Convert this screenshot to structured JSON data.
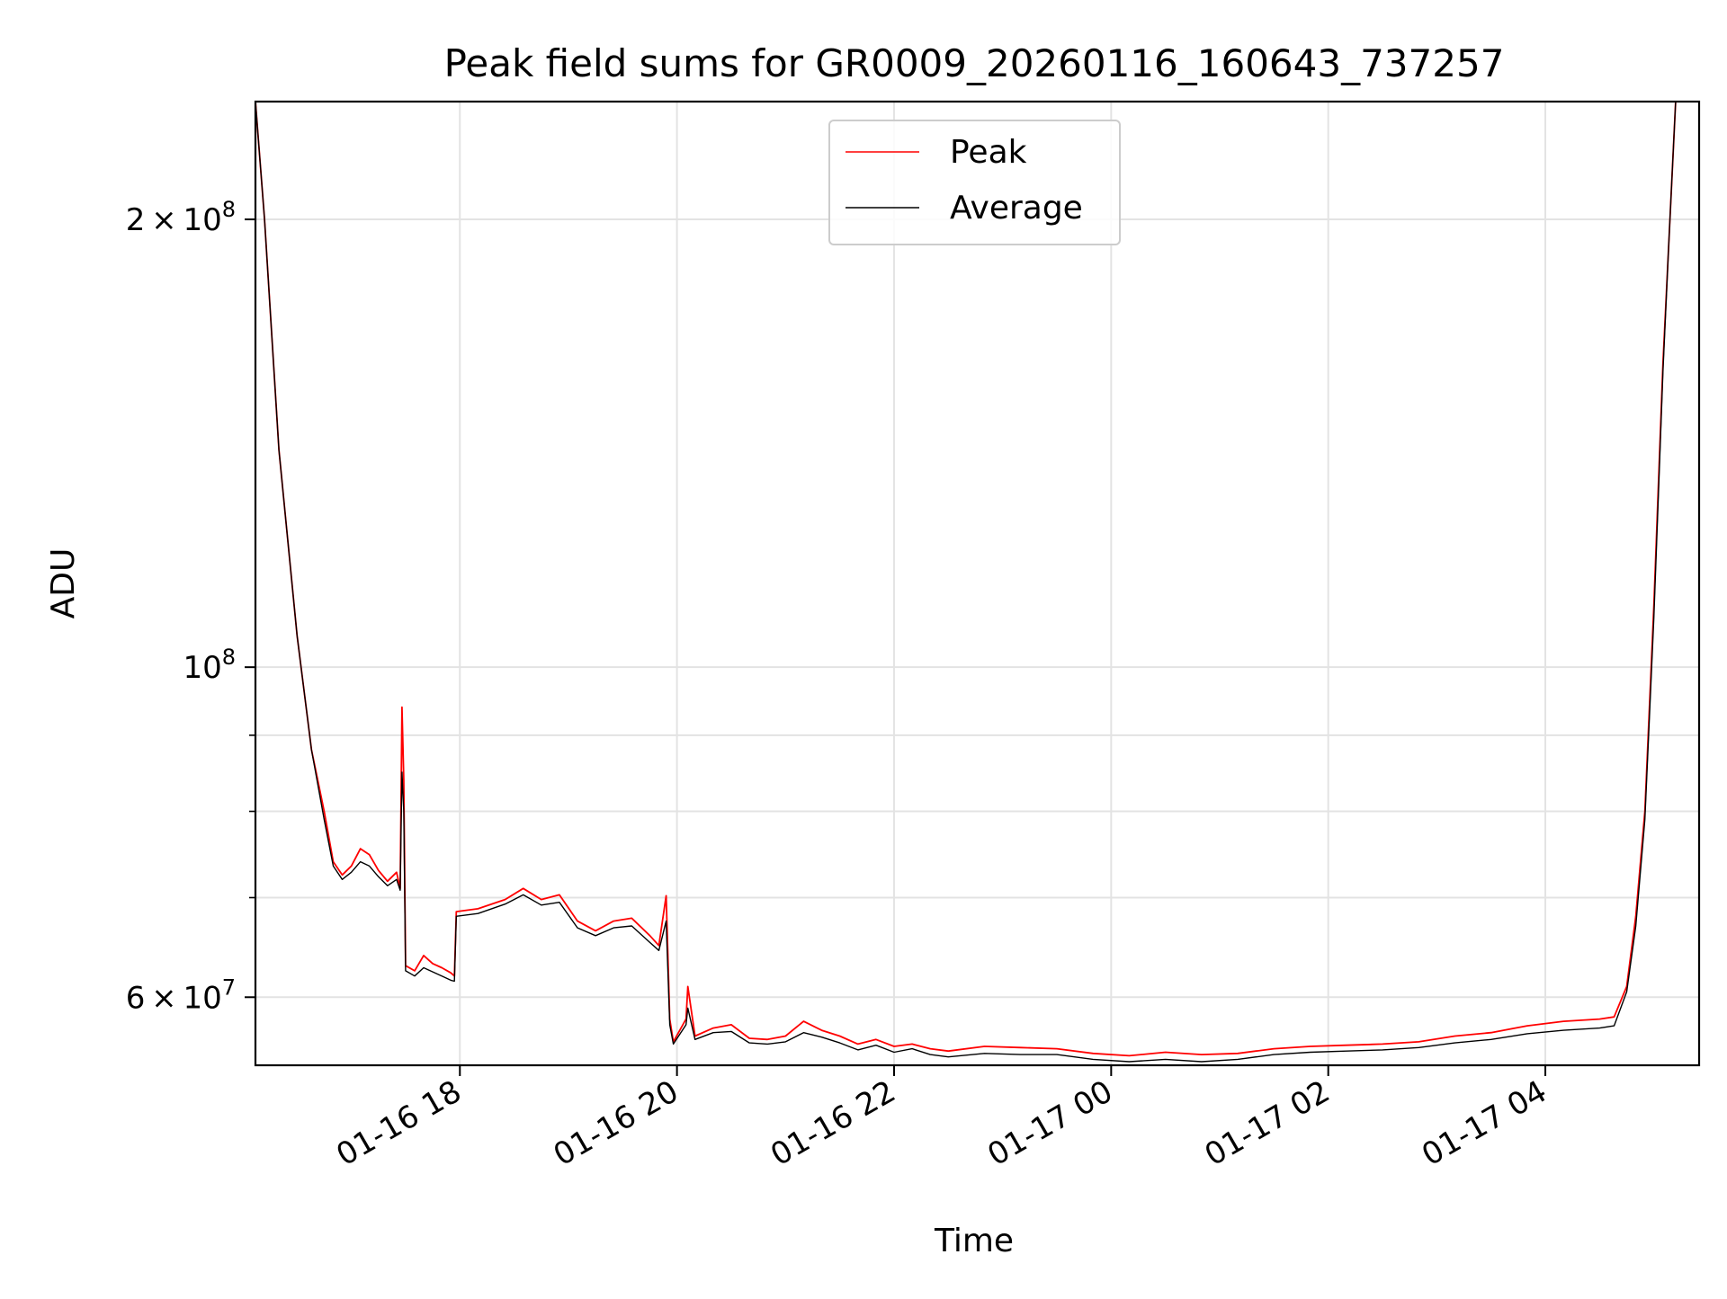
{
  "chart_data": {
    "type": "line",
    "title": "Peak field sums for GR0009_20260116_160643_737257",
    "xlabel": "Time",
    "ylabel": "ADU",
    "yscale": "log",
    "grid": true,
    "legend_position": "top-center",
    "xlim": [
      "2026-01-16 16:07",
      "2026-01-17 05:25"
    ],
    "ylim": [
      54000000,
      240000000
    ],
    "x_ticks": [
      {
        "value": "2026-01-16 18:00",
        "label": "01-16 18"
      },
      {
        "value": "2026-01-16 20:00",
        "label": "01-16 20"
      },
      {
        "value": "2026-01-16 22:00",
        "label": "01-16 22"
      },
      {
        "value": "2026-01-17 00:00",
        "label": "01-17 00"
      },
      {
        "value": "2026-01-17 02:00",
        "label": "01-17 02"
      },
      {
        "value": "2026-01-17 04:00",
        "label": "01-17 04"
      }
    ],
    "y_ticks_major": [
      {
        "value": 100000000,
        "base": "10",
        "exp": "8",
        "mantissa": ""
      },
      {
        "value": 200000000,
        "base": "10",
        "exp": "8",
        "mantissa": "2"
      },
      {
        "value": 60000000,
        "base": "10",
        "exp": "7",
        "mantissa": "6"
      }
    ],
    "y_ticks_minor": [
      70000000,
      80000000,
      90000000
    ],
    "series": [
      {
        "name": "Peak",
        "color": "#ff0000",
        "points": [
          [
            "2026-01-16 16:07",
            240000000
          ],
          [
            "2026-01-16 16:12",
            200000000
          ],
          [
            "2026-01-16 16:20",
            140000000
          ],
          [
            "2026-01-16 16:30",
            105000000
          ],
          [
            "2026-01-16 16:38",
            88000000
          ],
          [
            "2026-01-16 16:45",
            80000000
          ],
          [
            "2026-01-16 16:50",
            74000000
          ],
          [
            "2026-01-16 16:55",
            72500000
          ],
          [
            "2026-01-16 17:00",
            73500000
          ],
          [
            "2026-01-16 17:05",
            75500000
          ],
          [
            "2026-01-16 17:10",
            74800000
          ],
          [
            "2026-01-16 17:15",
            73000000
          ],
          [
            "2026-01-16 17:20",
            71800000
          ],
          [
            "2026-01-16 17:25",
            72800000
          ],
          [
            "2026-01-16 17:27",
            71000000
          ],
          [
            "2026-01-16 17:28",
            94000000
          ],
          [
            "2026-01-16 17:29",
            84000000
          ],
          [
            "2026-01-16 17:30",
            63000000
          ],
          [
            "2026-01-16 17:35",
            62500000
          ],
          [
            "2026-01-16 17:40",
            64000000
          ],
          [
            "2026-01-16 17:45",
            63200000
          ],
          [
            "2026-01-16 17:50",
            62800000
          ],
          [
            "2026-01-16 17:55",
            62300000
          ],
          [
            "2026-01-16 17:57",
            62000000
          ],
          [
            "2026-01-16 17:58",
            68500000
          ],
          [
            "2026-01-16 18:10",
            68800000
          ],
          [
            "2026-01-16 18:25",
            69800000
          ],
          [
            "2026-01-16 18:35",
            71000000
          ],
          [
            "2026-01-16 18:45",
            69800000
          ],
          [
            "2026-01-16 18:55",
            70300000
          ],
          [
            "2026-01-16 19:05",
            67500000
          ],
          [
            "2026-01-16 19:15",
            66500000
          ],
          [
            "2026-01-16 19:25",
            67500000
          ],
          [
            "2026-01-16 19:35",
            67800000
          ],
          [
            "2026-01-16 19:45",
            66000000
          ],
          [
            "2026-01-16 19:50",
            65000000
          ],
          [
            "2026-01-16 19:54",
            70200000
          ],
          [
            "2026-01-16 19:56",
            58000000
          ],
          [
            "2026-01-16 19:58",
            56000000
          ],
          [
            "2026-01-16 20:05",
            58000000
          ],
          [
            "2026-01-16 20:06",
            61000000
          ],
          [
            "2026-01-16 20:10",
            56500000
          ],
          [
            "2026-01-16 20:20",
            57200000
          ],
          [
            "2026-01-16 20:30",
            57500000
          ],
          [
            "2026-01-16 20:40",
            56300000
          ],
          [
            "2026-01-16 20:50",
            56200000
          ],
          [
            "2026-01-16 21:00",
            56500000
          ],
          [
            "2026-01-16 21:10",
            57800000
          ],
          [
            "2026-01-16 21:20",
            57000000
          ],
          [
            "2026-01-16 21:30",
            56500000
          ],
          [
            "2026-01-16 21:40",
            55800000
          ],
          [
            "2026-01-16 21:50",
            56200000
          ],
          [
            "2026-01-16 22:00",
            55600000
          ],
          [
            "2026-01-16 22:10",
            55800000
          ],
          [
            "2026-01-16 22:20",
            55400000
          ],
          [
            "2026-01-16 22:30",
            55200000
          ],
          [
            "2026-01-16 22:50",
            55600000
          ],
          [
            "2026-01-16 23:10",
            55500000
          ],
          [
            "2026-01-16 23:30",
            55400000
          ],
          [
            "2026-01-16 23:50",
            55000000
          ],
          [
            "2026-01-17 00:10",
            54800000
          ],
          [
            "2026-01-17 00:30",
            55100000
          ],
          [
            "2026-01-17 00:50",
            54900000
          ],
          [
            "2026-01-17 01:10",
            55000000
          ],
          [
            "2026-01-17 01:30",
            55400000
          ],
          [
            "2026-01-17 01:50",
            55600000
          ],
          [
            "2026-01-17 02:10",
            55700000
          ],
          [
            "2026-01-17 02:30",
            55800000
          ],
          [
            "2026-01-17 02:50",
            56000000
          ],
          [
            "2026-01-17 03:10",
            56500000
          ],
          [
            "2026-01-17 03:30",
            56800000
          ],
          [
            "2026-01-17 03:50",
            57400000
          ],
          [
            "2026-01-17 04:10",
            57800000
          ],
          [
            "2026-01-17 04:30",
            58000000
          ],
          [
            "2026-01-17 04:38",
            58200000
          ],
          [
            "2026-01-17 04:45",
            61000000
          ],
          [
            "2026-01-17 04:50",
            68000000
          ],
          [
            "2026-01-17 04:55",
            80000000
          ],
          [
            "2026-01-17 05:00",
            110000000
          ],
          [
            "2026-01-17 05:05",
            160000000
          ],
          [
            "2026-01-17 05:08",
            190000000
          ],
          [
            "2026-01-17 05:12",
            240000000
          ],
          [
            "2026-01-17 05:25",
            240000000
          ]
        ]
      },
      {
        "name": "Average",
        "color": "#000000",
        "points": [
          [
            "2026-01-16 16:07",
            240000000
          ],
          [
            "2026-01-16 16:12",
            200000000
          ],
          [
            "2026-01-16 16:20",
            140000000
          ],
          [
            "2026-01-16 16:30",
            105000000
          ],
          [
            "2026-01-16 16:38",
            88000000
          ],
          [
            "2026-01-16 16:45",
            79000000
          ],
          [
            "2026-01-16 16:50",
            73500000
          ],
          [
            "2026-01-16 16:55",
            72000000
          ],
          [
            "2026-01-16 17:00",
            72800000
          ],
          [
            "2026-01-16 17:05",
            74000000
          ],
          [
            "2026-01-16 17:10",
            73500000
          ],
          [
            "2026-01-16 17:15",
            72300000
          ],
          [
            "2026-01-16 17:20",
            71300000
          ],
          [
            "2026-01-16 17:25",
            72000000
          ],
          [
            "2026-01-16 17:27",
            70800000
          ],
          [
            "2026-01-16 17:28",
            85000000
          ],
          [
            "2026-01-16 17:29",
            80000000
          ],
          [
            "2026-01-16 17:30",
            62500000
          ],
          [
            "2026-01-16 17:35",
            62000000
          ],
          [
            "2026-01-16 17:40",
            62800000
          ],
          [
            "2026-01-16 17:45",
            62400000
          ],
          [
            "2026-01-16 17:50",
            62000000
          ],
          [
            "2026-01-16 17:55",
            61600000
          ],
          [
            "2026-01-16 17:57",
            61500000
          ],
          [
            "2026-01-16 17:58",
            68000000
          ],
          [
            "2026-01-16 18:10",
            68300000
          ],
          [
            "2026-01-16 18:25",
            69300000
          ],
          [
            "2026-01-16 18:35",
            70300000
          ],
          [
            "2026-01-16 18:45",
            69200000
          ],
          [
            "2026-01-16 18:55",
            69500000
          ],
          [
            "2026-01-16 19:05",
            66800000
          ],
          [
            "2026-01-16 19:15",
            66000000
          ],
          [
            "2026-01-16 19:25",
            66800000
          ],
          [
            "2026-01-16 19:35",
            67000000
          ],
          [
            "2026-01-16 19:45",
            65300000
          ],
          [
            "2026-01-16 19:50",
            64500000
          ],
          [
            "2026-01-16 19:54",
            67500000
          ],
          [
            "2026-01-16 19:56",
            57500000
          ],
          [
            "2026-01-16 19:58",
            55800000
          ],
          [
            "2026-01-16 20:05",
            57500000
          ],
          [
            "2026-01-16 20:06",
            59000000
          ],
          [
            "2026-01-16 20:10",
            56200000
          ],
          [
            "2026-01-16 20:20",
            56800000
          ],
          [
            "2026-01-16 20:30",
            56900000
          ],
          [
            "2026-01-16 20:40",
            55900000
          ],
          [
            "2026-01-16 20:50",
            55800000
          ],
          [
            "2026-01-16 21:00",
            56000000
          ],
          [
            "2026-01-16 21:10",
            56800000
          ],
          [
            "2026-01-16 21:20",
            56400000
          ],
          [
            "2026-01-16 21:30",
            55900000
          ],
          [
            "2026-01-16 21:40",
            55300000
          ],
          [
            "2026-01-16 21:50",
            55700000
          ],
          [
            "2026-01-16 22:00",
            55100000
          ],
          [
            "2026-01-16 22:10",
            55400000
          ],
          [
            "2026-01-16 22:20",
            54900000
          ],
          [
            "2026-01-16 22:30",
            54700000
          ],
          [
            "2026-01-16 22:50",
            55000000
          ],
          [
            "2026-01-16 23:10",
            54900000
          ],
          [
            "2026-01-16 23:30",
            54900000
          ],
          [
            "2026-01-16 23:50",
            54500000
          ],
          [
            "2026-01-17 00:10",
            54300000
          ],
          [
            "2026-01-17 00:30",
            54500000
          ],
          [
            "2026-01-17 00:50",
            54300000
          ],
          [
            "2026-01-17 01:10",
            54500000
          ],
          [
            "2026-01-17 01:30",
            54900000
          ],
          [
            "2026-01-17 01:50",
            55100000
          ],
          [
            "2026-01-17 02:10",
            55200000
          ],
          [
            "2026-01-17 02:30",
            55300000
          ],
          [
            "2026-01-17 02:50",
            55500000
          ],
          [
            "2026-01-17 03:10",
            55900000
          ],
          [
            "2026-01-17 03:30",
            56200000
          ],
          [
            "2026-01-17 03:50",
            56700000
          ],
          [
            "2026-01-17 04:10",
            57000000
          ],
          [
            "2026-01-17 04:30",
            57200000
          ],
          [
            "2026-01-17 04:38",
            57400000
          ],
          [
            "2026-01-17 04:45",
            60500000
          ],
          [
            "2026-01-17 04:50",
            67000000
          ],
          [
            "2026-01-17 04:55",
            79000000
          ],
          [
            "2026-01-17 05:00",
            108000000
          ],
          [
            "2026-01-17 05:05",
            158000000
          ],
          [
            "2026-01-17 05:08",
            190000000
          ],
          [
            "2026-01-17 05:12",
            240000000
          ],
          [
            "2026-01-17 05:25",
            240000000
          ]
        ]
      }
    ]
  }
}
